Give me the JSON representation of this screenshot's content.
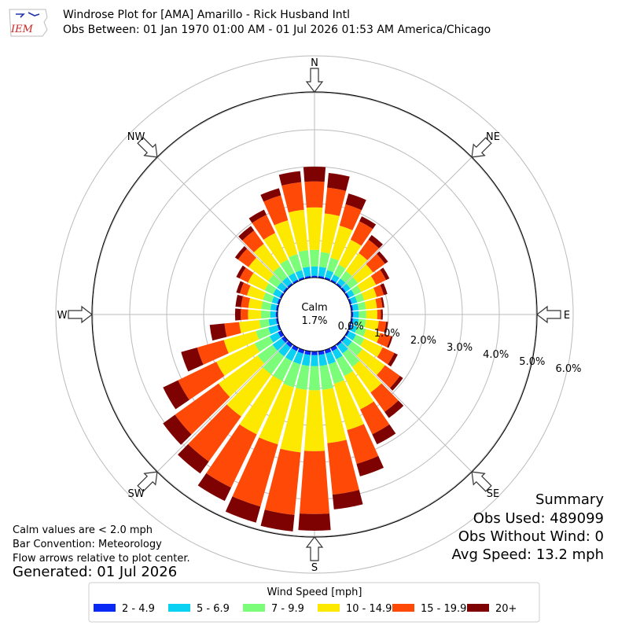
{
  "header": {
    "logo_text": "IEM",
    "title": "Windrose Plot for [AMA] Amarillo - Rick Husband Intl",
    "subtitle": "Obs Between: 01 Jan 1970 01:00 AM - 01 Jul 2026 01:53 AM America/Chicago"
  },
  "notes": {
    "calm_def": "Calm values are < 2.0 mph",
    "convention": "Bar Convention: Meteorology",
    "flow": "Flow arrows relative to plot center.",
    "generated": "Generated: 01 Jul 2026"
  },
  "summary": {
    "heading": "Summary",
    "obs_used": "Obs Used: 489099",
    "obs_without_wind": "Obs Without Wind: 0",
    "avg_speed": "Avg Speed: 13.2 mph"
  },
  "chart_data": {
    "type": "windrose",
    "calm_label": "Calm",
    "calm_value": "1.7%",
    "compass_labels": [
      "N",
      "NE",
      "E",
      "SE",
      "S",
      "SW",
      "W",
      "NW"
    ],
    "radial_ticks": [
      0,
      1,
      2,
      3,
      4,
      5,
      6
    ],
    "radial_tick_labels": [
      "0.0%",
      "1.0%",
      "2.0%",
      "3.0%",
      "4.0%",
      "5.0%",
      "6.0%"
    ],
    "legend_title": "Wind Speed [mph]",
    "bins": [
      {
        "label": "2 - 4.9",
        "color": "#0b29f5"
      },
      {
        "label": "5 - 6.9",
        "color": "#0ad1f2"
      },
      {
        "label": "7 - 9.9",
        "color": "#7bfd7a"
      },
      {
        "label": "10 - 14.9",
        "color": "#fde800"
      },
      {
        "label": "15 - 19.9",
        "color": "#fe4a06"
      },
      {
        "label": "20+",
        "color": "#7e0202"
      }
    ],
    "directions": [
      0,
      10,
      20,
      30,
      40,
      50,
      60,
      70,
      80,
      90,
      100,
      110,
      120,
      130,
      140,
      150,
      160,
      170,
      180,
      190,
      200,
      210,
      220,
      230,
      240,
      250,
      260,
      270,
      280,
      290,
      300,
      310,
      320,
      330,
      340,
      350
    ],
    "cumulative_percent": [
      [
        0.05,
        0.3,
        0.75,
        1.9,
        2.6,
        3.0
      ],
      [
        0.05,
        0.3,
        0.7,
        1.75,
        2.45,
        2.85
      ],
      [
        0.05,
        0.25,
        0.6,
        1.5,
        2.1,
        2.4
      ],
      [
        0.05,
        0.2,
        0.5,
        1.25,
        1.8,
        1.95
      ],
      [
        0.05,
        0.2,
        0.45,
        1.05,
        1.5,
        1.65
      ],
      [
        0.05,
        0.2,
        0.45,
        0.95,
        1.35,
        1.45
      ],
      [
        0.05,
        0.2,
        0.4,
        0.85,
        1.15,
        1.25
      ],
      [
        0.05,
        0.2,
        0.4,
        0.75,
        0.95,
        1.05
      ],
      [
        0.05,
        0.2,
        0.4,
        0.7,
        0.85,
        0.9
      ],
      [
        0.05,
        0.2,
        0.4,
        0.7,
        0.8,
        0.85
      ],
      [
        0.05,
        0.2,
        0.4,
        0.75,
        0.95,
        1.0
      ],
      [
        0.05,
        0.2,
        0.45,
        0.85,
        1.15,
        1.2
      ],
      [
        0.05,
        0.25,
        0.5,
        1.05,
        1.4,
        1.5
      ],
      [
        0.05,
        0.25,
        0.6,
        1.35,
        1.85,
        1.95
      ],
      [
        0.05,
        0.3,
        0.75,
        1.6,
        2.25,
        2.45
      ],
      [
        0.1,
        0.35,
        0.85,
        1.85,
        2.6,
        2.9
      ],
      [
        0.1,
        0.4,
        0.95,
        2.25,
        3.2,
        3.55
      ],
      [
        0.1,
        0.4,
        1.05,
        2.5,
        3.9,
        4.3
      ],
      [
        0.1,
        0.4,
        1.05,
        2.7,
        4.4,
        4.85
      ],
      [
        0.1,
        0.4,
        1.05,
        2.75,
        4.45,
        4.9
      ],
      [
        0.1,
        0.4,
        1.05,
        2.65,
        4.4,
        4.85
      ],
      [
        0.1,
        0.4,
        1.0,
        2.6,
        4.2,
        4.6
      ],
      [
        0.1,
        0.4,
        1.0,
        2.4,
        3.9,
        4.3
      ],
      [
        0.1,
        0.4,
        0.9,
        2.2,
        3.65,
        4.05
      ],
      [
        0.1,
        0.35,
        0.8,
        1.95,
        3.1,
        3.55
      ],
      [
        0.05,
        0.3,
        0.65,
        1.55,
        2.3,
        2.75
      ],
      [
        0.05,
        0.25,
        0.5,
        1.05,
        1.45,
        1.85
      ],
      [
        0.05,
        0.2,
        0.45,
        0.8,
        1.0,
        1.15
      ],
      [
        0.05,
        0.2,
        0.45,
        0.8,
        1.0,
        1.15
      ],
      [
        0.05,
        0.2,
        0.45,
        0.9,
        1.1,
        1.2
      ],
      [
        0.05,
        0.25,
        0.5,
        1.0,
        1.25,
        1.35
      ],
      [
        0.05,
        0.25,
        0.55,
        1.2,
        1.55,
        1.65
      ],
      [
        0.05,
        0.25,
        0.6,
        1.35,
        1.8,
        1.95
      ],
      [
        0.05,
        0.25,
        0.65,
        1.45,
        2.0,
        2.15
      ],
      [
        0.05,
        0.25,
        0.7,
        1.65,
        2.35,
        2.55
      ],
      [
        0.05,
        0.3,
        0.75,
        1.85,
        2.6,
        2.9
      ]
    ]
  }
}
